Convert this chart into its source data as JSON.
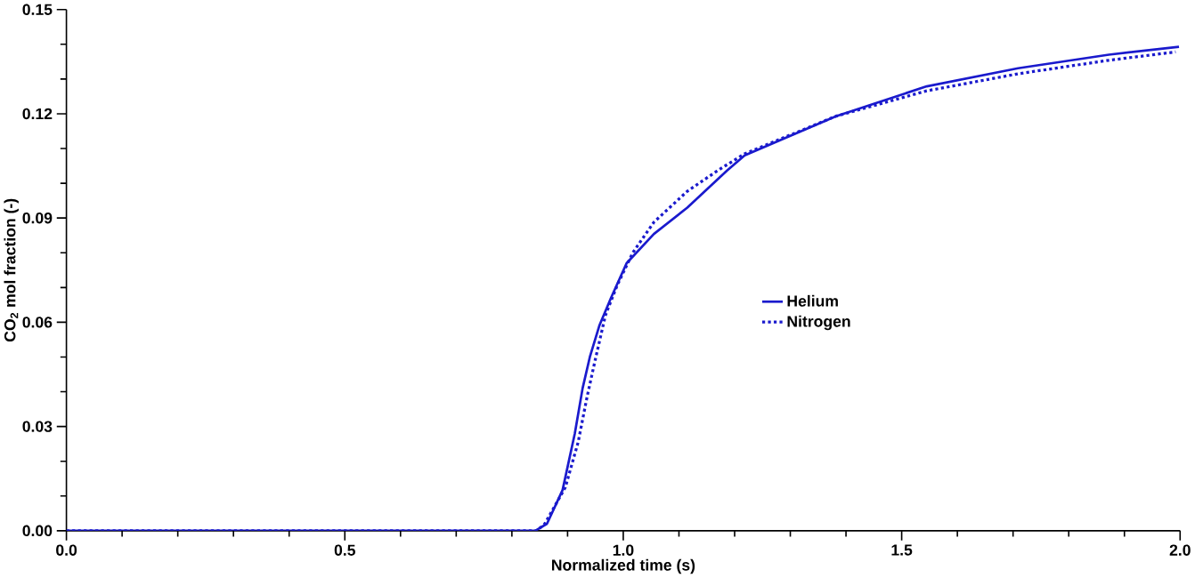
{
  "chart_data": {
    "type": "line",
    "xlabel": "Normalized time (s)",
    "ylabel": "CO$_{2}$ mol fraction (-)",
    "xlim": [
      0,
      2.0
    ],
    "ylim": [
      0,
      0.15
    ],
    "xticks": [
      {
        "value": 0,
        "label": "0.0"
      },
      0.5,
      {
        "value": 1,
        "label": "1.0"
      },
      1.5,
      {
        "value": 2,
        "label": "2.0"
      }
    ],
    "yticks": [
      {
        "value": 0,
        "label": "0.00"
      },
      0.03,
      0.06,
      0.09,
      0.12,
      0.15
    ],
    "legend": "right",
    "grid": false,
    "series": [
      {
        "name": "Helium",
        "color": "#1a1acd",
        "line_style": "solid",
        "x": [
          0,
          0.5,
          0.842,
          0.863,
          0.891,
          0.913,
          0.927,
          0.94,
          0.957,
          0.978,
          1.006,
          1.055,
          1.115,
          1.186,
          1.218,
          1.382,
          1.545,
          1.709,
          1.872,
          1.998
        ],
        "values": [
          0,
          0,
          0,
          0.002,
          0.0117,
          0.028,
          0.041,
          0.05,
          0.059,
          0.067,
          0.077,
          0.0854,
          0.093,
          0.1036,
          0.108,
          0.1193,
          0.1279,
          0.1331,
          0.137,
          0.1393
        ]
      },
      {
        "name": "Nitrogen",
        "color": "#1a1acd",
        "line_style": "dotted",
        "x": [
          0,
          0.5,
          0.845,
          0.859,
          0.896,
          0.919,
          0.935,
          0.948,
          0.968,
          0.989,
          1.017,
          1.055,
          1.115,
          1.169,
          1.218,
          1.382,
          1.545,
          1.709,
          1.872,
          1.992
        ],
        "values": [
          0,
          0,
          0,
          0.002,
          0.0125,
          0.0255,
          0.0385,
          0.048,
          0.062,
          0.0706,
          0.08,
          0.0888,
          0.0977,
          0.1036,
          0.1085,
          0.1193,
          0.1266,
          0.1315,
          0.1354,
          0.1378
        ]
      }
    ]
  }
}
